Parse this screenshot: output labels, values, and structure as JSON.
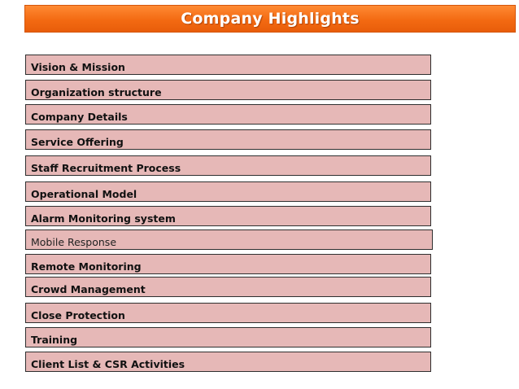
{
  "title": "Company Highlights",
  "colors": {
    "banner": "#f36a12",
    "item_fill": "#e6b8b7",
    "item_border": "#2f2f2f",
    "title_text": "#ffffff"
  },
  "topics": [
    {
      "label": "Vision & Mission",
      "bold": true
    },
    {
      "label": "Organization structure",
      "bold": true
    },
    {
      "label": "Company Details",
      "bold": true
    },
    {
      "label": "Service Offering",
      "bold": true
    },
    {
      "label": "Staff Recruitment Process",
      "bold": true
    },
    {
      "label": "Operational Model",
      "bold": true
    },
    {
      "label": "Alarm Monitoring system",
      "bold": true
    },
    {
      "label": "Mobile Response",
      "bold": false
    },
    {
      "label": "Remote Monitoring",
      "bold": true
    },
    {
      "label": "Crowd Management",
      "bold": true
    },
    {
      "label": "Close Protection",
      "bold": true
    },
    {
      "label": "Training",
      "bold": true
    },
    {
      "label": "Client List & CSR Activities",
      "bold": true
    }
  ]
}
